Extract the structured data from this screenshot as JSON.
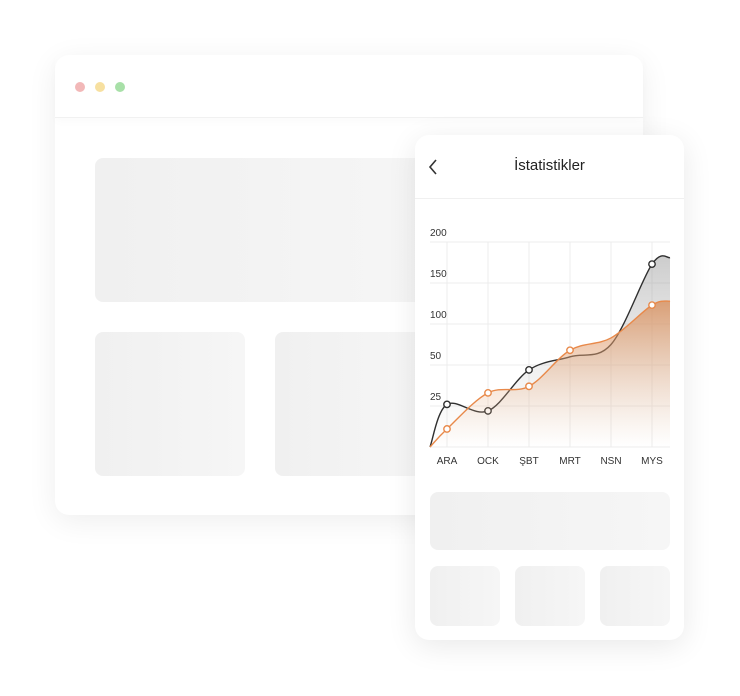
{
  "window": {
    "dots": [
      {
        "name": "close",
        "color": "#f2b8b8"
      },
      {
        "name": "minimize",
        "color": "#f7e0a0"
      },
      {
        "name": "maximize",
        "color": "#a8e0a8"
      }
    ]
  },
  "phone": {
    "title": "İstatistikler",
    "back_icon": "chevron-left-icon"
  },
  "chart_data": {
    "type": "area",
    "categories": [
      "ARA",
      "OCK",
      "ŞBT",
      "MRT",
      "NSN",
      "MYS"
    ],
    "y_ticks": [
      25,
      50,
      100,
      150,
      200
    ],
    "ylim": [
      0,
      200
    ],
    "grid": true,
    "series": [
      {
        "color": "#2f2f2f",
        "values": [
          26,
          22,
          47,
          60,
          75,
          173
        ],
        "markers": [
          true,
          true,
          true,
          false,
          false,
          true
        ]
      },
      {
        "color": "#e8894a",
        "values": [
          11,
          33,
          37,
          68,
          83,
          123
        ],
        "markers": [
          true,
          true,
          true,
          true,
          false,
          true
        ]
      }
    ]
  }
}
